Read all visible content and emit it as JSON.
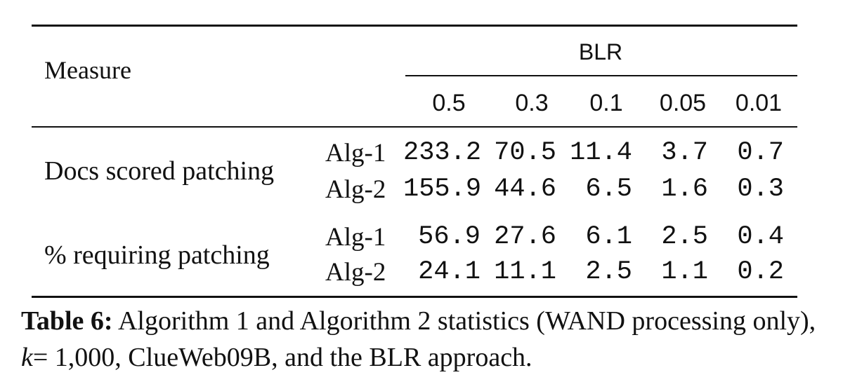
{
  "table": {
    "measure_header": "Measure",
    "group_header": "BLR",
    "columns": [
      "0.5",
      "0.3",
      "0.1",
      "0.05",
      "0.01"
    ],
    "groups": [
      {
        "label": "Docs scored patching",
        "rows": [
          {
            "alg": "Alg-1",
            "values": [
              "233.2",
              "70.5",
              "11.4",
              "3.7",
              "0.7"
            ]
          },
          {
            "alg": "Alg-2",
            "values": [
              "155.9",
              "44.6",
              "6.5",
              "1.6",
              "0.3"
            ]
          }
        ]
      },
      {
        "label": "% requiring patching",
        "rows": [
          {
            "alg": "Alg-1",
            "values": [
              "56.9",
              "27.6",
              "6.1",
              "2.5",
              "0.4"
            ]
          },
          {
            "alg": "Alg-2",
            "values": [
              "24.1",
              "11.1",
              "2.5",
              "1.1",
              "0.2"
            ]
          }
        ]
      }
    ]
  },
  "caption": {
    "label": "Table 6:",
    "text_1": "Algorithm 1 and Algorithm 2 statistics (WAND processing only),",
    "k": "k",
    "text_2": "= 1,000, ClueWeb09B, and the BLR approach."
  }
}
